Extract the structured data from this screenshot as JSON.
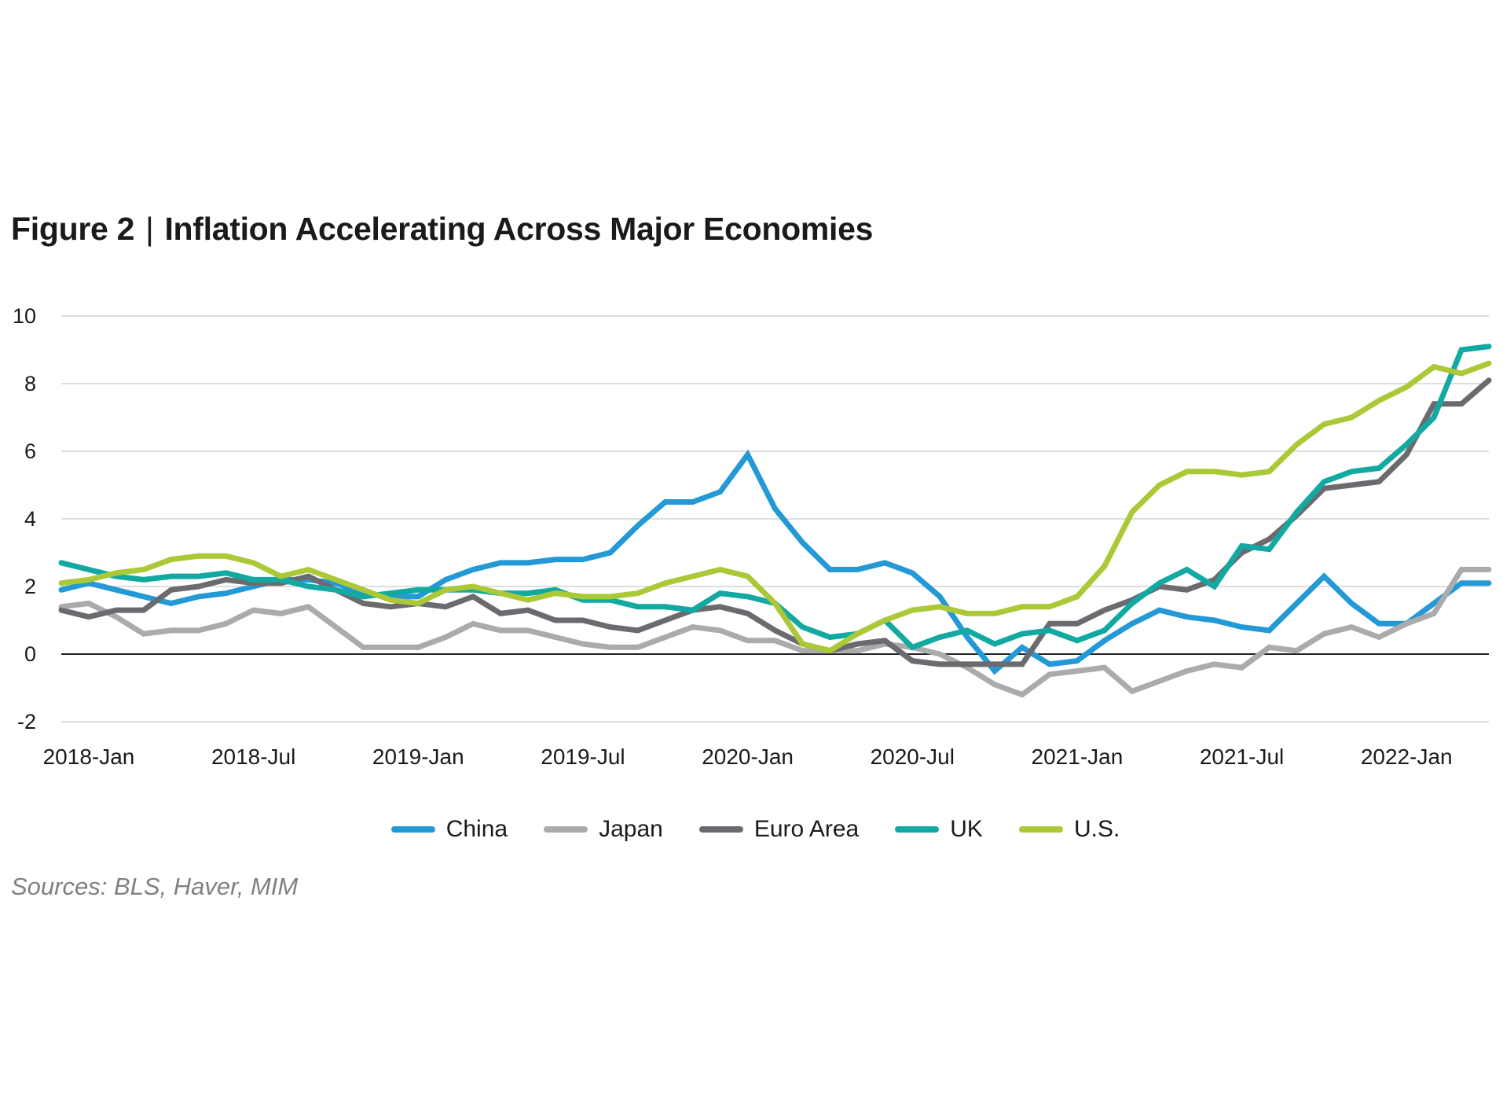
{
  "figure_label": "Figure 2",
  "separator": "|",
  "title": "Inflation Accelerating Across Major Economies",
  "source": "Sources: BLS, Haver, MIM",
  "chart_data": {
    "type": "line",
    "title": "Inflation Accelerating Across Major Economies",
    "xlabel": "",
    "ylabel": "",
    "ylim": [
      -2,
      10
    ],
    "yticks": [
      10,
      8,
      6,
      4,
      2,
      0,
      -2
    ],
    "grid": true,
    "legend_position": "bottom-center",
    "x": [
      "2018-Jan",
      "2018-Feb",
      "2018-Mar",
      "2018-Apr",
      "2018-May",
      "2018-Jun",
      "2018-Jul",
      "2018-Aug",
      "2018-Sep",
      "2018-Oct",
      "2018-Nov",
      "2018-Dec",
      "2019-Jan",
      "2019-Feb",
      "2019-Mar",
      "2019-Apr",
      "2019-May",
      "2019-Jun",
      "2019-Jul",
      "2019-Aug",
      "2019-Sep",
      "2019-Oct",
      "2019-Nov",
      "2019-Dec",
      "2020-Jan",
      "2020-Feb",
      "2020-Mar",
      "2020-Apr",
      "2020-May",
      "2020-Jun",
      "2020-Jul",
      "2020-Aug",
      "2020-Sep",
      "2020-Oct",
      "2020-Nov",
      "2020-Dec",
      "2021-Jan",
      "2021-Feb",
      "2021-Mar",
      "2021-Apr",
      "2021-May",
      "2021-Jun",
      "2021-Jul",
      "2021-Aug",
      "2021-Sep",
      "2021-Oct",
      "2021-Nov",
      "2021-Dec",
      "2022-Jan",
      "2022-Feb",
      "2022-Mar",
      "2022-Apr",
      "2022-May"
    ],
    "xtick_labels": [
      "2018-Jan",
      "2018-Jul",
      "2019-Jan",
      "2019-Jul",
      "2020-Jan",
      "2020-Jul",
      "2021-Jan",
      "2021-Jul",
      "2022-Jan"
    ],
    "series": [
      {
        "name": "China",
        "color": "#2399d6",
        "values": [
          1.9,
          2.1,
          1.9,
          1.7,
          1.5,
          1.7,
          1.8,
          2.0,
          2.2,
          2.2,
          2.1,
          1.8,
          1.7,
          1.7,
          2.2,
          2.5,
          2.7,
          2.7,
          2.8,
          2.8,
          3.0,
          3.8,
          4.5,
          4.5,
          4.8,
          5.9,
          4.3,
          3.3,
          2.5,
          2.5,
          2.7,
          2.4,
          1.7,
          0.5,
          -0.5,
          0.2,
          -0.3,
          -0.2,
          0.4,
          0.9,
          1.3,
          1.1,
          1.0,
          0.8,
          0.7,
          1.5,
          2.3,
          1.5,
          0.9,
          0.9,
          1.5,
          2.1,
          2.1
        ]
      },
      {
        "name": "Japan",
        "color": "#aaabac",
        "values": [
          1.4,
          1.5,
          1.1,
          0.6,
          0.7,
          0.7,
          0.9,
          1.3,
          1.2,
          1.4,
          0.8,
          0.2,
          0.2,
          0.2,
          0.5,
          0.9,
          0.7,
          0.7,
          0.5,
          0.3,
          0.2,
          0.2,
          0.5,
          0.8,
          0.7,
          0.4,
          0.4,
          0.1,
          0.1,
          0.1,
          0.3,
          0.2,
          0.0,
          -0.4,
          -0.9,
          -1.2,
          -0.6,
          -0.5,
          -0.4,
          -1.1,
          -0.8,
          -0.5,
          -0.3,
          -0.4,
          0.2,
          0.1,
          0.6,
          0.8,
          0.5,
          0.9,
          1.2,
          2.5,
          2.5
        ]
      },
      {
        "name": "Euro Area",
        "color": "#6b6b6f",
        "values": [
          1.3,
          1.1,
          1.3,
          1.3,
          1.9,
          2.0,
          2.2,
          2.1,
          2.1,
          2.3,
          1.9,
          1.5,
          1.4,
          1.5,
          1.4,
          1.7,
          1.2,
          1.3,
          1.0,
          1.0,
          0.8,
          0.7,
          1.0,
          1.3,
          1.4,
          1.2,
          0.7,
          0.3,
          0.1,
          0.3,
          0.4,
          -0.2,
          -0.3,
          -0.3,
          -0.3,
          -0.3,
          0.9,
          0.9,
          1.3,
          1.6,
          2.0,
          1.9,
          2.2,
          3.0,
          3.4,
          4.1,
          4.9,
          5.0,
          5.1,
          5.9,
          7.4,
          7.4,
          8.1
        ]
      },
      {
        "name": "UK",
        "color": "#12a9a2",
        "values": [
          2.7,
          2.5,
          2.3,
          2.2,
          2.3,
          2.3,
          2.4,
          2.2,
          2.2,
          2.0,
          1.9,
          1.7,
          1.8,
          1.9,
          1.9,
          1.9,
          1.8,
          1.8,
          1.9,
          1.6,
          1.6,
          1.4,
          1.4,
          1.3,
          1.8,
          1.7,
          1.5,
          0.8,
          0.5,
          0.6,
          1.0,
          0.2,
          0.5,
          0.7,
          0.3,
          0.6,
          0.7,
          0.4,
          0.7,
          1.5,
          2.1,
          2.5,
          2.0,
          3.2,
          3.1,
          4.2,
          5.1,
          5.4,
          5.5,
          6.2,
          7.0,
          9.0,
          9.1
        ]
      },
      {
        "name": "U.S.",
        "color": "#abc936",
        "values": [
          2.1,
          2.2,
          2.4,
          2.5,
          2.8,
          2.9,
          2.9,
          2.7,
          2.3,
          2.5,
          2.2,
          1.9,
          1.6,
          1.5,
          1.9,
          2.0,
          1.8,
          1.6,
          1.8,
          1.7,
          1.7,
          1.8,
          2.1,
          2.3,
          2.5,
          2.3,
          1.5,
          0.3,
          0.1,
          0.6,
          1.0,
          1.3,
          1.4,
          1.2,
          1.2,
          1.4,
          1.4,
          1.7,
          2.6,
          4.2,
          5.0,
          5.4,
          5.4,
          5.3,
          5.4,
          6.2,
          6.8,
          7.0,
          7.5,
          7.9,
          8.5,
          8.3,
          8.6
        ]
      }
    ]
  },
  "legend": [
    {
      "label": "China",
      "color": "#2399d6"
    },
    {
      "label": "Japan",
      "color": "#aaabac"
    },
    {
      "label": "Euro Area",
      "color": "#6b6b6f"
    },
    {
      "label": "UK",
      "color": "#12a9a2"
    },
    {
      "label": "U.S.",
      "color": "#abc936"
    }
  ]
}
